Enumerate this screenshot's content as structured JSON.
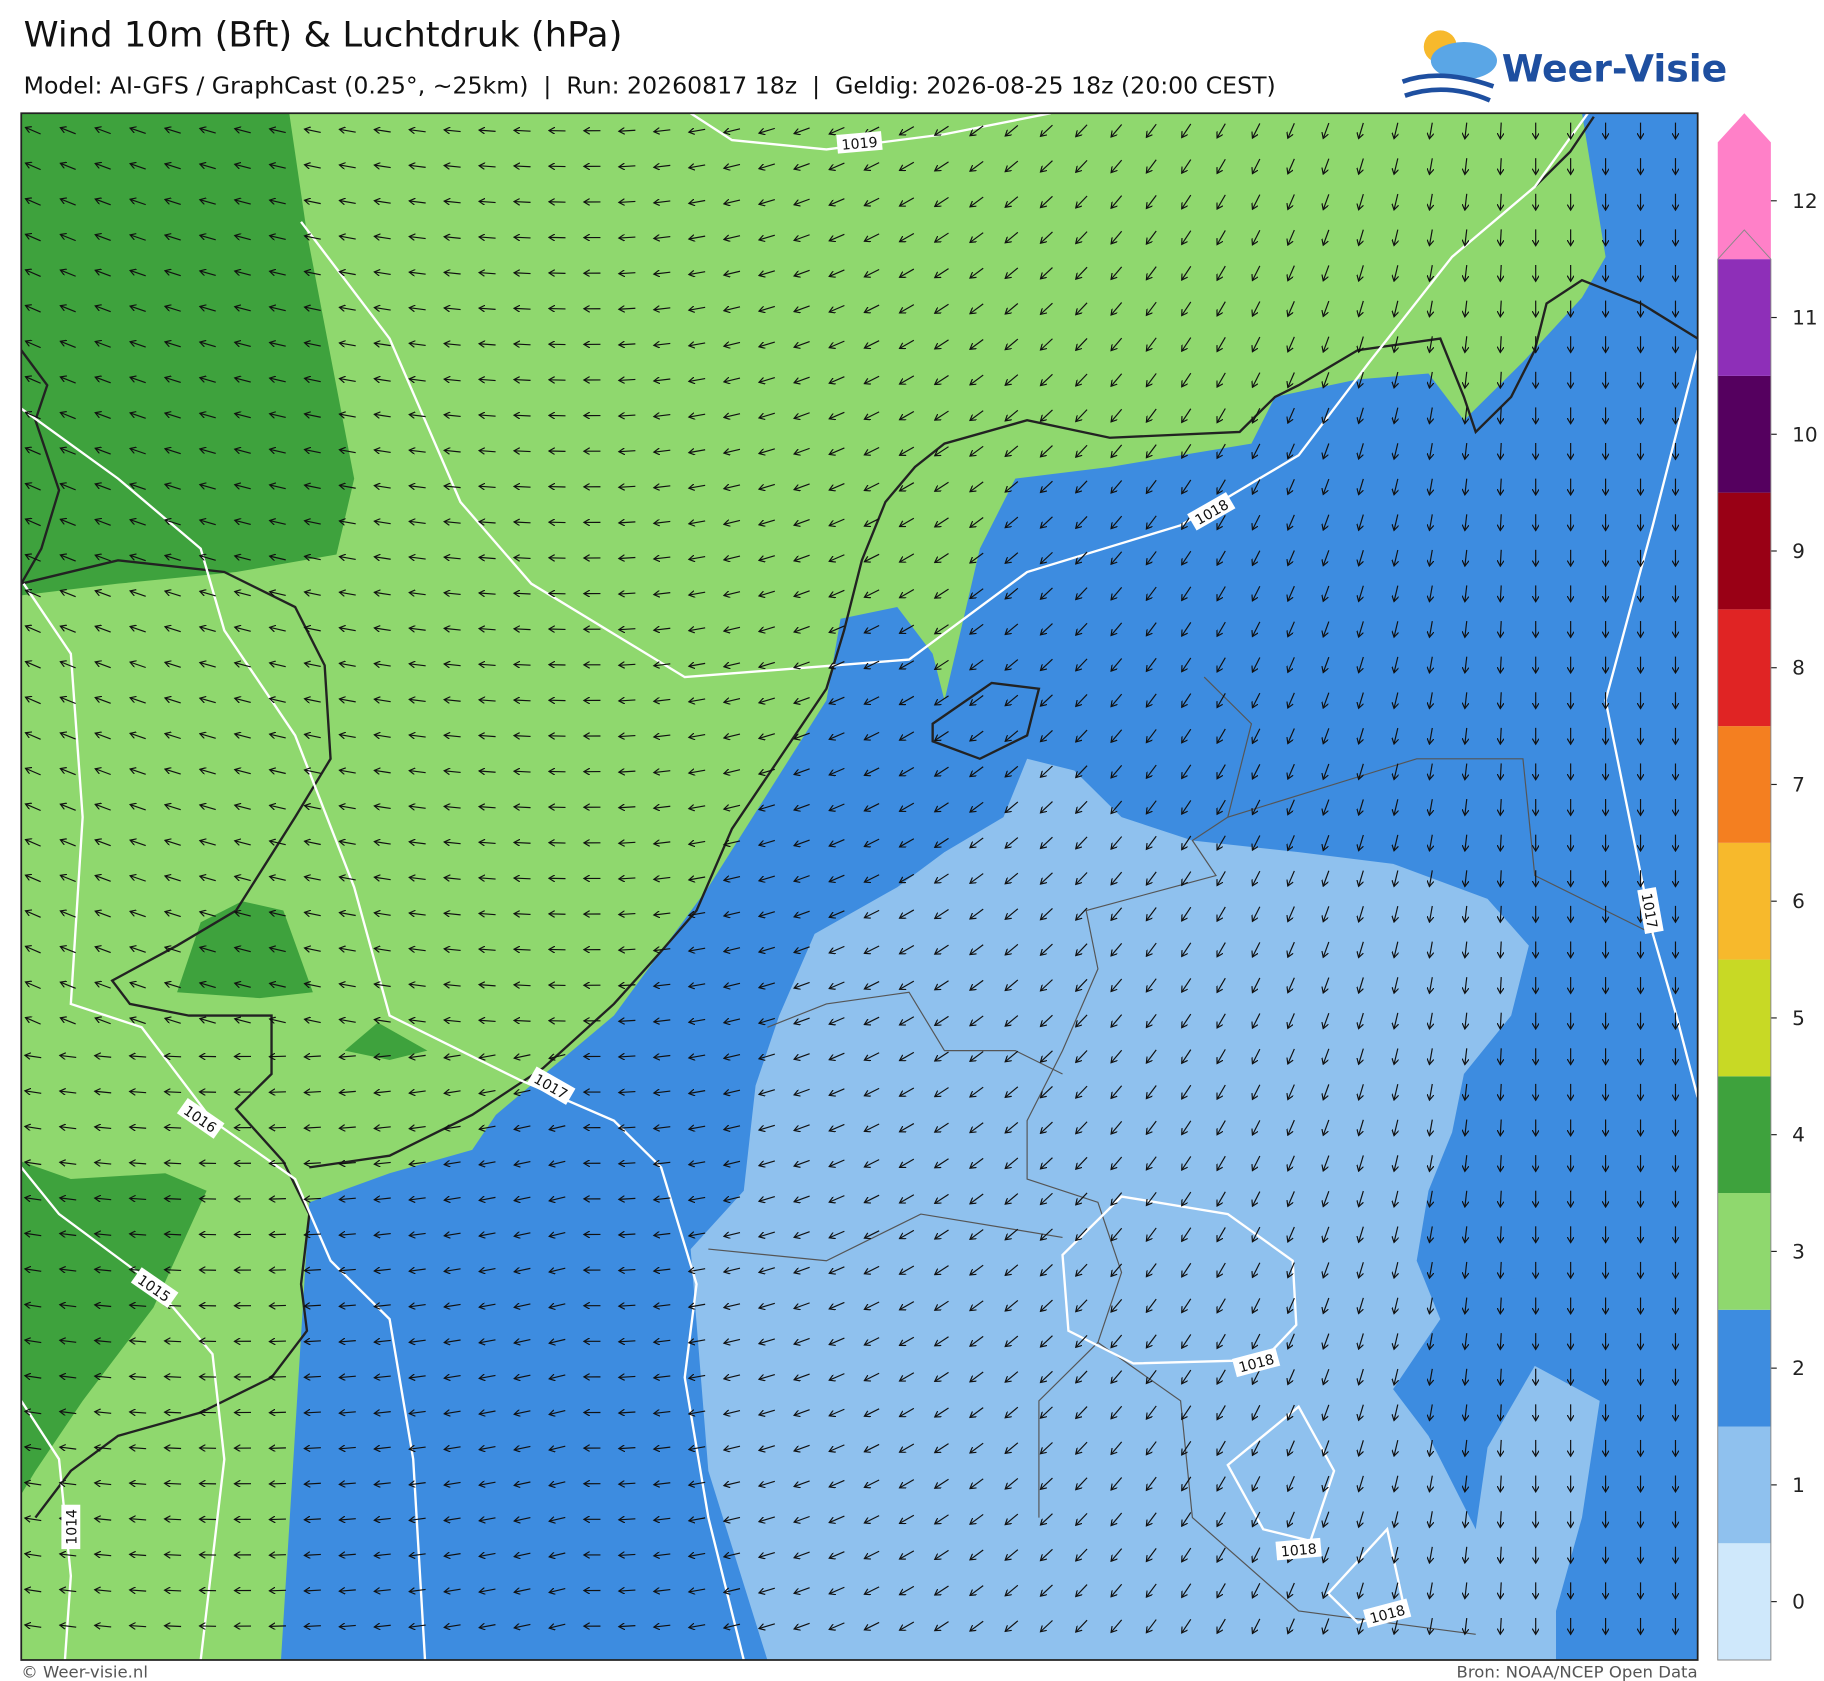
{
  "header": {
    "title": "Wind 10m (Bft) & Luchtdruk (hPa)",
    "subtitle": "Model: AI-GFS / GraphCast (0.25°, ~25km)  |  Run: 20260817 18z  |  Geldig: 2026-08-25 18z (20:00 CEST)",
    "logo": "Weer-Visie"
  },
  "colorbar": {
    "ticks": [
      0,
      1,
      2,
      3,
      4,
      5,
      6,
      7,
      8,
      9,
      10,
      11,
      12
    ],
    "colors": [
      "#cfe8fb",
      "#8fc1ee",
      "#3d8ce0",
      "#8fd86e",
      "#3ea23d",
      "#c8d925",
      "#f7b92c",
      "#f47f20",
      "#e02424",
      "#990015",
      "#55005f",
      "#8e2fb8",
      "#ff80c8"
    ]
  },
  "isobar_labels": [
    1019,
    1018,
    1017,
    1016,
    1015,
    1014,
    1018,
    1018,
    1018,
    1017
  ],
  "footer": {
    "left": "© Weer-visie.nl",
    "right": "Bron: NOAA/NCEP Open Data"
  }
}
